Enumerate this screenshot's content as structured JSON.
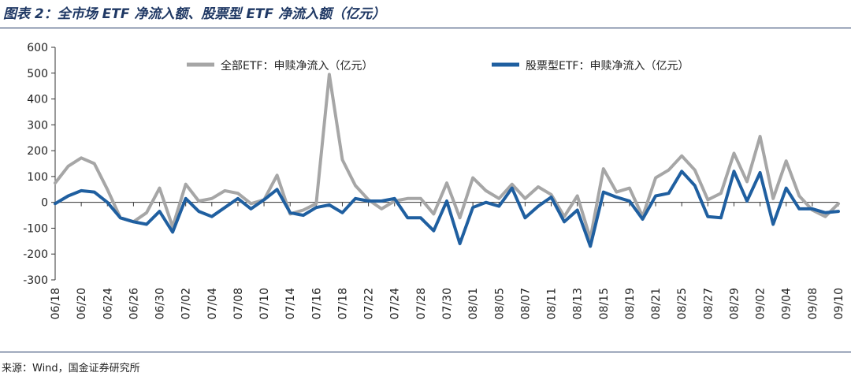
{
  "title": "图表 2：全市场 ETF 净流入额、股票型 ETF 净流入额（亿元）",
  "source": "来源：Wind，国金证券研究所",
  "colors": {
    "all_etf": "#a6a6a6",
    "stock_etf": "#1f5fa0",
    "title": "#1f3864"
  },
  "chart_data": {
    "type": "line",
    "ylim": [
      -300,
      600
    ],
    "yticks": [
      600,
      500,
      400,
      300,
      200,
      100,
      0,
      -100,
      -200,
      -300
    ],
    "xtick_labels": [
      "06/18",
      "06/20",
      "06/24",
      "06/26",
      "06/30",
      "07/02",
      "07/04",
      "07/08",
      "07/10",
      "07/14",
      "07/16",
      "07/18",
      "07/22",
      "07/24",
      "07/28",
      "07/30",
      "08/01",
      "08/05",
      "08/07",
      "08/11",
      "08/13",
      "08/15",
      "08/19",
      "08/21",
      "08/25",
      "08/27",
      "08/29",
      "09/02",
      "09/04",
      "09/08",
      "09/10"
    ],
    "series": [
      {
        "name": "全部ETF：申赎净流入（亿元）",
        "values": [
          75,
          140,
          172,
          150,
          50,
          -60,
          -75,
          -40,
          55,
          -95,
          70,
          5,
          15,
          45,
          35,
          -5,
          10,
          105,
          -45,
          -30,
          -5,
          495,
          165,
          65,
          10,
          -25,
          5,
          15,
          15,
          -45,
          75,
          -60,
          95,
          45,
          15,
          70,
          15,
          60,
          30,
          -55,
          25,
          -140,
          130,
          40,
          55,
          -55,
          95,
          125,
          180,
          125,
          10,
          35,
          190,
          80,
          255,
          15,
          160,
          25,
          -30,
          -55,
          -5
        ]
      },
      {
        "name": "股票型ETF：申赎净流入（亿元）",
        "values": [
          -5,
          25,
          45,
          40,
          0,
          -60,
          -75,
          -85,
          -35,
          -115,
          15,
          -35,
          -55,
          -20,
          15,
          -25,
          10,
          50,
          -40,
          -50,
          -20,
          -10,
          -40,
          15,
          5,
          5,
          15,
          -60,
          -60,
          -110,
          5,
          -160,
          -20,
          0,
          -15,
          55,
          -60,
          -15,
          20,
          -75,
          -30,
          -170,
          40,
          20,
          5,
          -65,
          25,
          35,
          120,
          65,
          -55,
          -60,
          120,
          5,
          115,
          -85,
          55,
          -25,
          -25,
          -40,
          -35
        ]
      }
    ]
  }
}
